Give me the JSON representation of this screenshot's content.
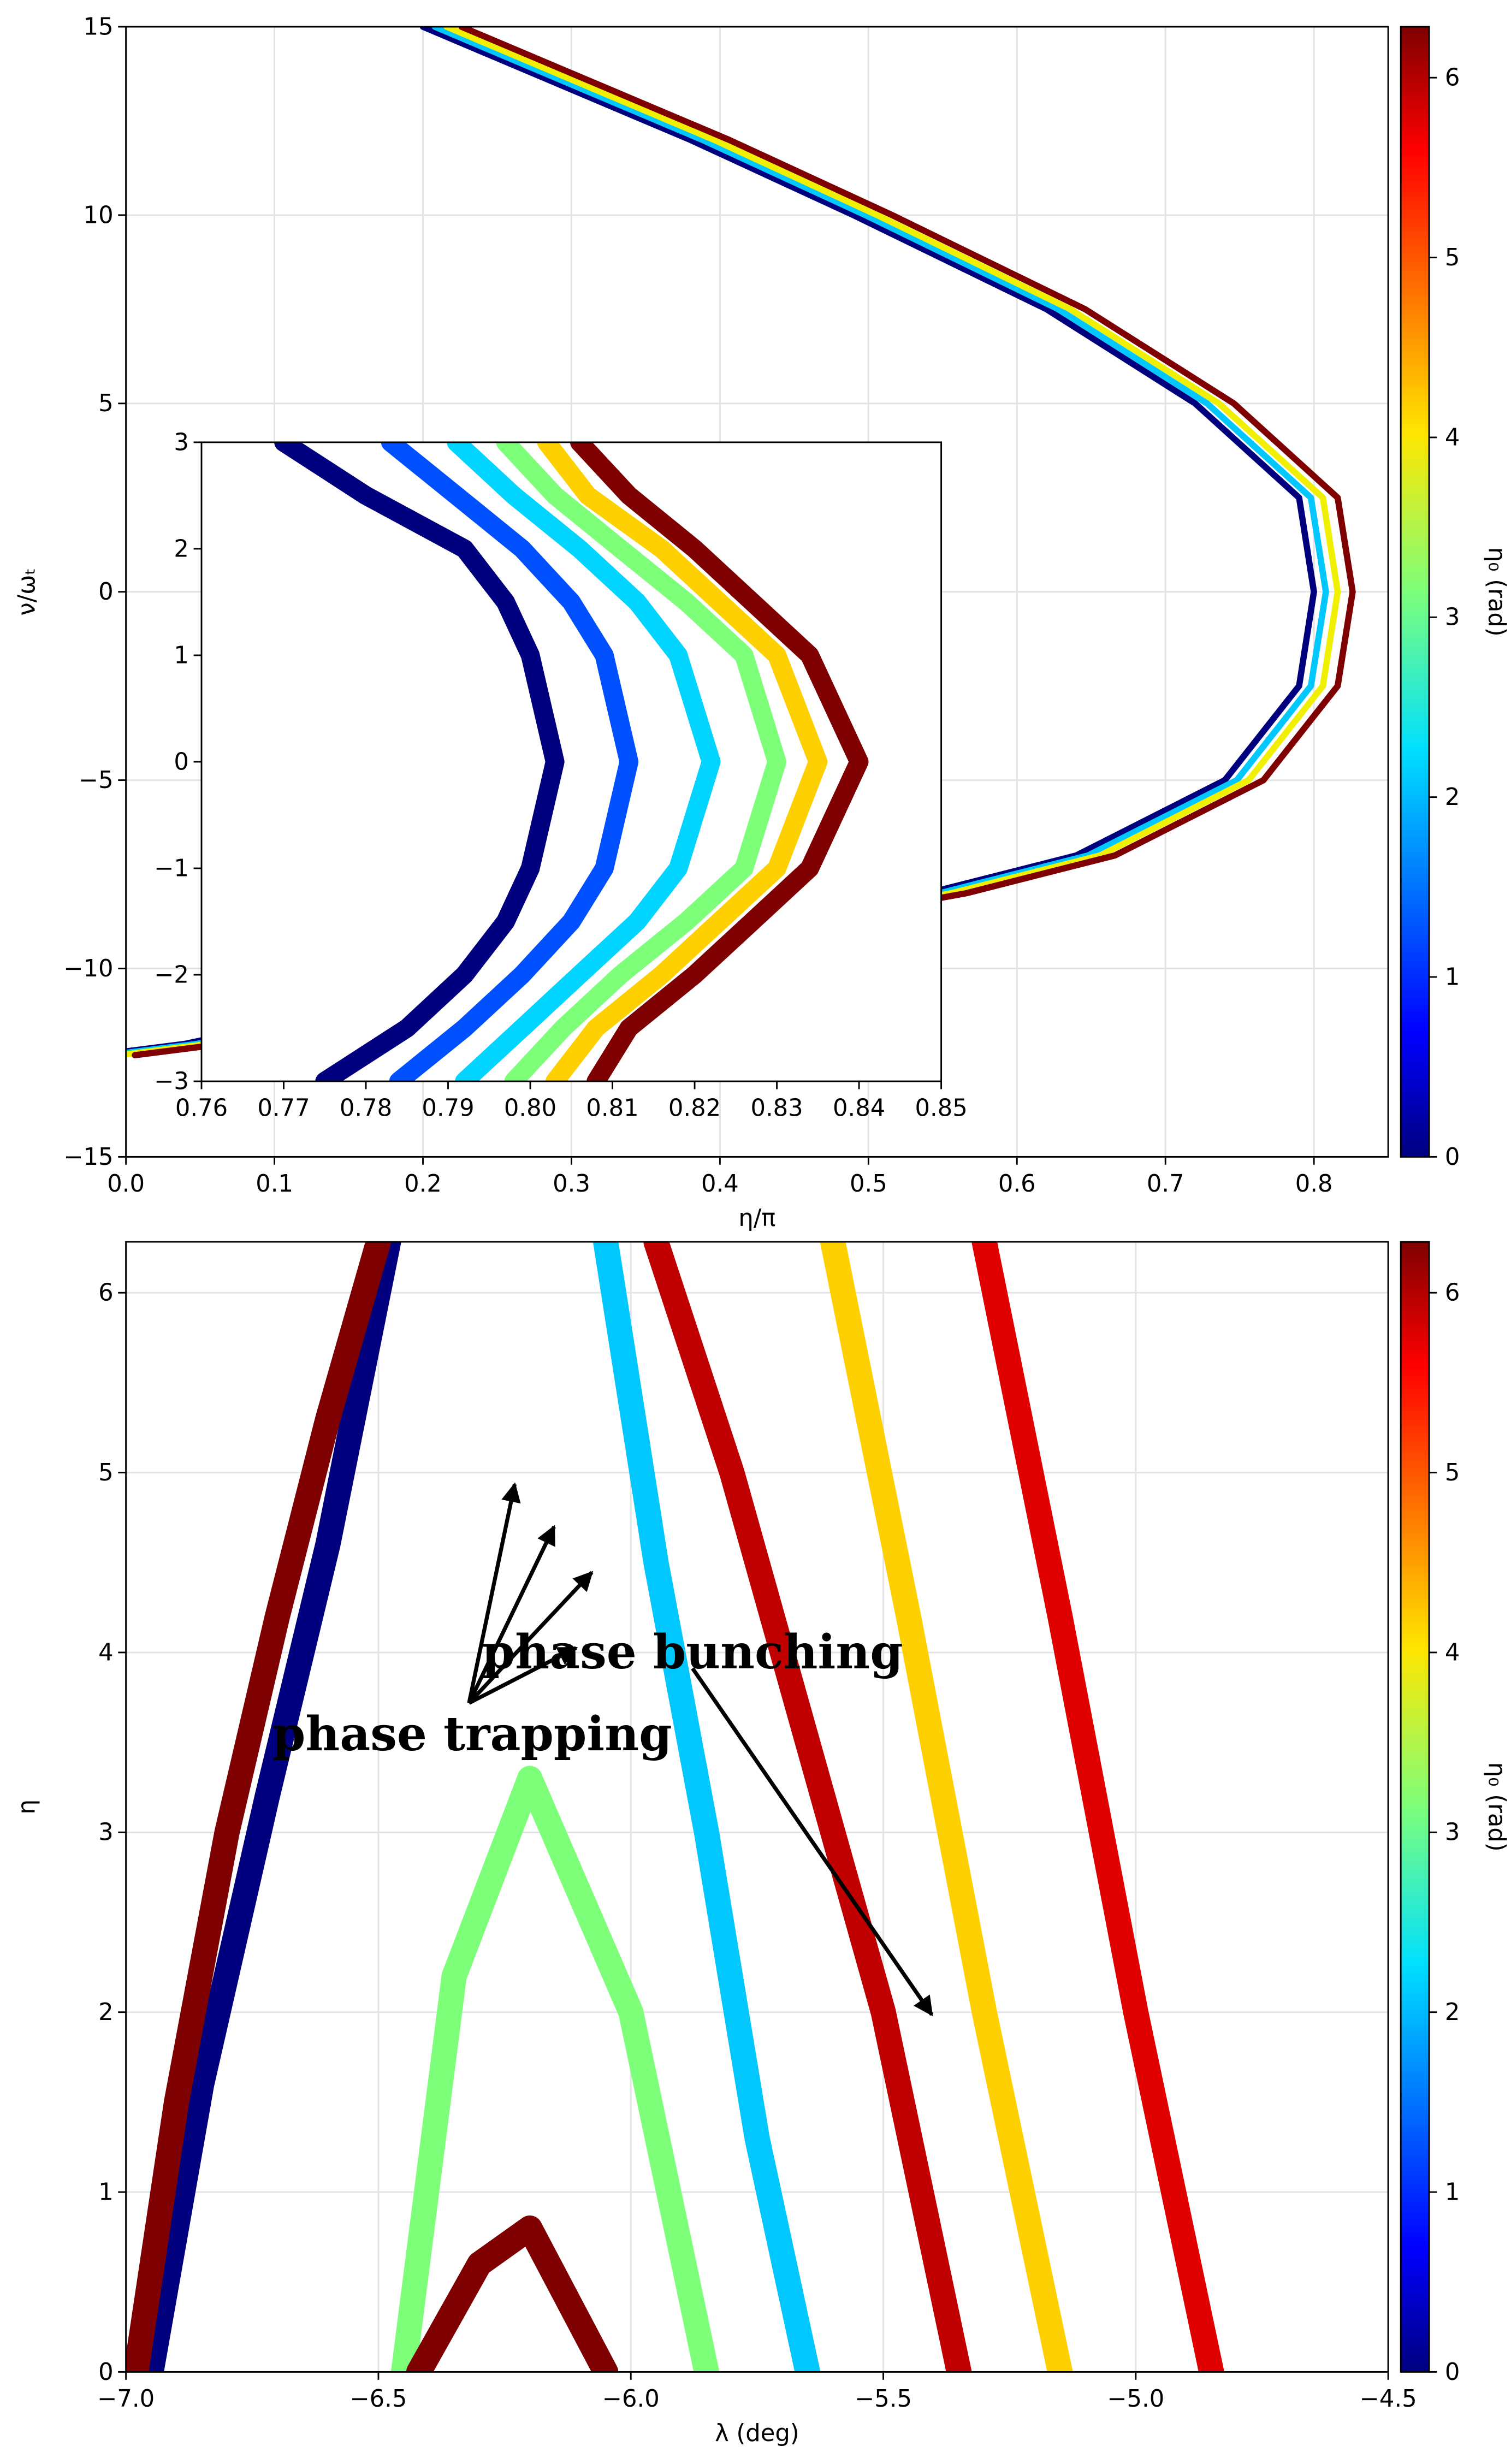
{
  "chart_data": [
    {
      "type": "line",
      "xlabel": "η/π",
      "ylabel": "ν/ωₜ",
      "xlim": [
        0,
        0.85
      ],
      "ylim": [
        -15,
        15
      ],
      "xticks": [
        {
          "value": 0,
          "label": "0.0"
        },
        0.1,
        0.2,
        0.3,
        0.4,
        0.5,
        0.6,
        0.7,
        0.8
      ],
      "yticks": [
        {
          "value": -15,
          "label": "−15"
        },
        {
          "value": -10,
          "label": "−10"
        },
        {
          "value": -5,
          "label": "−5"
        },
        0,
        5,
        10,
        15
      ],
      "grid": true,
      "colorbar": {
        "label": "η₀ (rad)",
        "lim": [
          0,
          6.283
        ],
        "ticks": [
          0,
          1,
          2,
          3,
          4,
          5,
          6
        ]
      },
      "series": [
        {
          "color": "#00007f",
          "x": [
            0.2,
            0.38,
            0.49,
            0.62,
            0.72,
            0.79,
            0.8,
            0.79,
            0.74,
            0.64,
            0.54,
            0.4,
            0.22,
            0.04,
            -0.02
          ],
          "values": [
            15,
            12,
            10,
            7.5,
            5,
            2.5,
            0,
            -2.5,
            -5,
            -7,
            -8,
            -9,
            -10.5,
            -12,
            -12.3
          ]
        },
        {
          "color": "#00c8ff",
          "x": [
            0.208,
            0.388,
            0.498,
            0.628,
            0.728,
            0.798,
            0.808,
            0.798,
            0.748,
            0.648,
            0.548,
            0.408,
            0.228,
            0.048,
            -0.012
          ],
          "values": [
            15,
            12,
            10,
            7.5,
            5,
            2.5,
            0,
            -2.5,
            -5,
            -7,
            -8,
            -9,
            -10.5,
            -12,
            -12.3
          ]
        },
        {
          "color": "#f0f000",
          "x": [
            0.216,
            0.396,
            0.506,
            0.636,
            0.736,
            0.806,
            0.816,
            0.806,
            0.756,
            0.656,
            0.556,
            0.416,
            0.236,
            0.056,
            -0.004
          ],
          "values": [
            15,
            12,
            10,
            7.5,
            5,
            2.5,
            0,
            -2.5,
            -5,
            -7,
            -8,
            -9,
            -10.5,
            -12,
            -12.3
          ]
        },
        {
          "color": "#7f0000",
          "x": [
            0.226,
            0.406,
            0.516,
            0.646,
            0.746,
            0.816,
            0.826,
            0.816,
            0.766,
            0.666,
            0.566,
            0.426,
            0.246,
            0.066,
            0.006
          ],
          "values": [
            15,
            12,
            10,
            7.5,
            5,
            2.5,
            0,
            -2.5,
            -5,
            -7,
            -8,
            -9,
            -10.5,
            -12,
            -12.3
          ]
        }
      ]
    },
    {
      "type": "line",
      "inset": true,
      "xlim": [
        0.76,
        0.85
      ],
      "ylim": [
        -3,
        3
      ],
      "xticks": [
        0.76,
        0.77,
        0.78,
        0.79,
        {
          "value": 0.8,
          "label": "0.80"
        },
        0.81,
        0.82,
        0.83,
        0.84,
        0.85
      ],
      "yticks": [
        {
          "value": -3,
          "label": "−3"
        },
        {
          "value": -2,
          "label": "−2"
        },
        {
          "value": -1,
          "label": "−1"
        },
        0,
        1,
        2,
        3
      ],
      "series": [
        {
          "color": "#00007f",
          "x": [
            0.775,
            0.785,
            0.792,
            0.797,
            0.8,
            0.803,
            0.8,
            0.797,
            0.792,
            0.78,
            0.77
          ],
          "values": [
            -3,
            -2.5,
            -2,
            -1.5,
            -1,
            0,
            1,
            1.5,
            2,
            2.5,
            3
          ]
        },
        {
          "color": "#0050ff",
          "x": [
            0.784,
            0.792,
            0.799,
            0.805,
            0.809,
            0.812,
            0.809,
            0.805,
            0.799,
            0.791,
            0.783
          ],
          "values": [
            -3,
            -2.5,
            -2,
            -1.5,
            -1,
            0,
            1,
            1.5,
            2,
            2.5,
            3
          ]
        },
        {
          "color": "#00d4ff",
          "x": [
            0.792,
            0.799,
            0.806,
            0.813,
            0.818,
            0.822,
            0.818,
            0.813,
            0.806,
            0.798,
            0.791
          ],
          "values": [
            -3,
            -2.5,
            -2,
            -1.5,
            -1,
            0,
            1,
            1.5,
            2,
            2.5,
            3
          ]
        },
        {
          "color": "#7dff7a",
          "x": [
            0.798,
            0.804,
            0.811,
            0.819,
            0.826,
            0.83,
            0.826,
            0.819,
            0.811,
            0.803,
            0.797
          ],
          "values": [
            -3,
            -2.5,
            -2,
            -1.5,
            -1,
            0,
            1,
            1.5,
            2,
            2.5,
            3
          ]
        },
        {
          "color": "#ffd000",
          "x": [
            0.803,
            0.808,
            0.816,
            0.823,
            0.83,
            0.835,
            0.83,
            0.823,
            0.816,
            0.807,
            0.802
          ],
          "values": [
            -3,
            -2.5,
            -2,
            -1.5,
            -1,
            0,
            1,
            1.5,
            2,
            2.5,
            3
          ]
        },
        {
          "color": "#7f0000",
          "x": [
            0.808,
            0.812,
            0.82,
            0.827,
            0.834,
            0.84,
            0.834,
            0.827,
            0.82,
            0.812,
            0.806
          ],
          "values": [
            -3,
            -2.5,
            -2,
            -1.5,
            -1,
            0,
            1,
            1.5,
            2,
            2.5,
            3
          ]
        }
      ]
    },
    {
      "type": "line",
      "xlabel": "λ (deg)",
      "ylabel": "η",
      "xlim": [
        -7,
        -4.5
      ],
      "ylim": [
        0,
        6.283
      ],
      "xticks": [
        {
          "value": -7,
          "label": "−7.0"
        },
        {
          "value": -6.5,
          "label": "−6.5"
        },
        {
          "value": -6,
          "label": "−6.0"
        },
        {
          "value": -5.5,
          "label": "−5.5"
        },
        {
          "value": -5,
          "label": "−5.0"
        },
        {
          "value": -4.5,
          "label": "−4.5"
        }
      ],
      "yticks": [
        0,
        1,
        2,
        3,
        4,
        5,
        6
      ],
      "grid": true,
      "colorbar": {
        "label": "η₀ (rad)",
        "lim": [
          0,
          6.283
        ],
        "ticks": [
          0,
          1,
          2,
          3,
          4,
          5,
          6
        ]
      },
      "annotations": [
        {
          "text": "phase trapping"
        },
        {
          "text": "phase bunching"
        }
      ],
      "series": [
        {
          "color": "#00007f",
          "x": [
            -6.95,
            -6.85,
            -6.72,
            -6.6,
            -6.48
          ],
          "values": [
            0,
            1.6,
            3.2,
            4.6,
            6.283
          ]
        },
        {
          "color": "#7f0000",
          "x": [
            -6.98,
            -6.9,
            -6.8,
            -6.7,
            -6.6,
            -6.5
          ],
          "values": [
            0,
            1.5,
            3,
            4.2,
            5.3,
            6.283
          ]
        },
        {
          "color": "#7dff7a",
          "x": [
            -6.45,
            -6.35,
            -6.2,
            -6.0,
            -5.85
          ],
          "values": [
            0,
            2.2,
            3.3,
            2.0,
            0
          ]
        },
        {
          "color": "#00c8ff",
          "x": [
            -6.05,
            -5.95,
            -5.85,
            -5.75,
            -5.65
          ],
          "values": [
            6.283,
            4.5,
            3,
            1.3,
            0
          ]
        },
        {
          "color": "#c00000",
          "x": [
            -5.95,
            -5.8,
            -5.65,
            -5.5,
            -5.35
          ],
          "values": [
            6.283,
            5,
            3.5,
            2,
            0
          ]
        },
        {
          "color": "#ffd000",
          "x": [
            -5.6,
            -5.45,
            -5.3,
            -5.15
          ],
          "values": [
            6.283,
            4.2,
            2,
            0
          ]
        },
        {
          "color": "#e00000",
          "x": [
            -5.3,
            -5.15,
            -5.0,
            -4.85
          ],
          "values": [
            6.283,
            4.2,
            2,
            0
          ]
        },
        {
          "color": "#7f0000",
          "x": [
            -6.42,
            -6.3,
            -6.2,
            -6.05
          ],
          "values": [
            0,
            0.6,
            0.8,
            0
          ]
        }
      ]
    }
  ]
}
